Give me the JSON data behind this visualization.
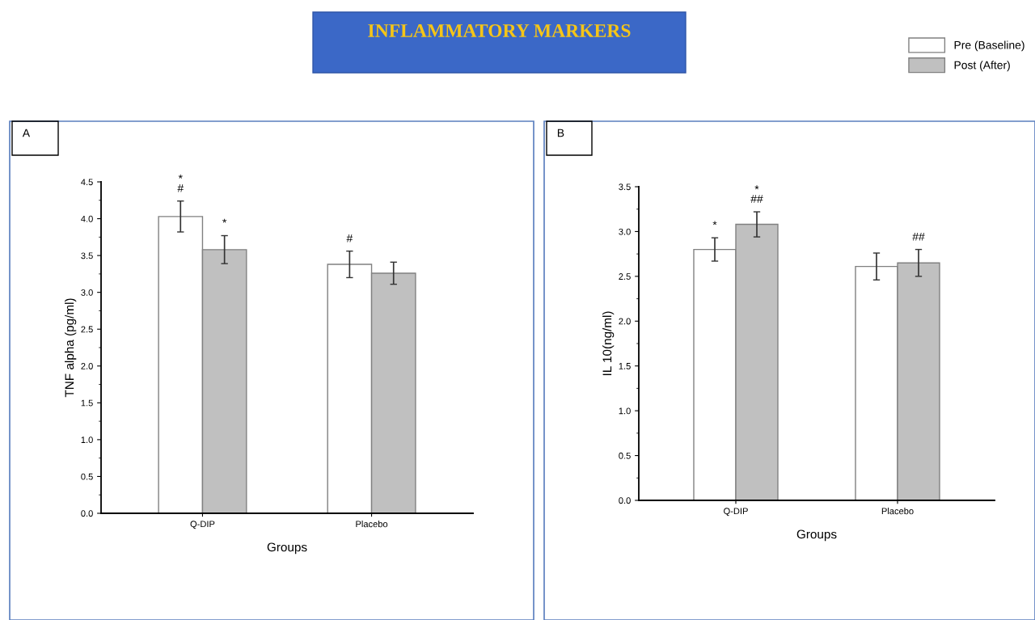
{
  "chart_data": [
    {
      "type": "bar",
      "title": "INFLAMMATORY MARKERS",
      "annotations": [
        "A",
        "*\n#",
        "*",
        "#"
      ],
      "categories": [
        "Q-DIP",
        "Placebo"
      ],
      "xlabel": "Groups",
      "ylabel": "TNF alpha (pg/ml)",
      "series": [
        {
          "name": "Pre (Baseline)",
          "color": "#ffffff",
          "values": [
            4.03,
            3.38
          ],
          "errors": [
            0.21,
            0.18
          ]
        },
        {
          "name": "Post (After)",
          "color": "#c0c0c0",
          "values": [
            3.58,
            3.26
          ],
          "errors": [
            0.19,
            0.15
          ]
        }
      ],
      "ylim": [
        0,
        4.5
      ],
      "yticks": [
        {
          "value": 0,
          "label": "0.0"
        },
        {
          "value": 0.5,
          "label": "0.5"
        },
        {
          "value": 1,
          "label": "1.0"
        },
        {
          "value": 1.5,
          "label": "1.5"
        },
        {
          "value": 2,
          "label": "2.0"
        },
        {
          "value": 2.5,
          "label": "2.5"
        },
        {
          "value": 3,
          "label": "3.0"
        },
        {
          "value": 3.5,
          "label": "3.5"
        },
        {
          "value": 4,
          "label": "4.0"
        },
        {
          "value": 4.5,
          "label": "4.5"
        }
      ],
      "legend": "top right",
      "grid": false
    },
    {
      "type": "bar",
      "annotations": [
        "B",
        "*",
        "*\n##",
        "##"
      ],
      "categories": [
        "Q-DIP",
        "Placebo"
      ],
      "xlabel": "Groups",
      "ylabel": "IL 10(ng/ml)",
      "series": [
        {
          "color": "#ffffff",
          "values": [
            2.8,
            2.61
          ],
          "errors": [
            0.13,
            0.15
          ]
        },
        {
          "color": "#c0c0c0",
          "values": [
            3.08,
            2.65
          ],
          "errors": [
            0.14,
            0.15
          ]
        }
      ],
      "ylim": [
        0,
        3.5
      ],
      "yticks": [
        {
          "value": 0,
          "label": "0.0"
        },
        {
          "value": 0.5,
          "label": "0.5"
        },
        {
          "value": 1,
          "label": "1.0"
        },
        {
          "value": 1.5,
          "label": "1.5"
        },
        {
          "value": 2,
          "label": "2.0"
        },
        {
          "value": 2.5,
          "label": "2.5"
        },
        {
          "value": 3,
          "label": "3.0"
        },
        {
          "value": 3.5,
          "label": "3.5"
        }
      ],
      "grid": false
    }
  ]
}
